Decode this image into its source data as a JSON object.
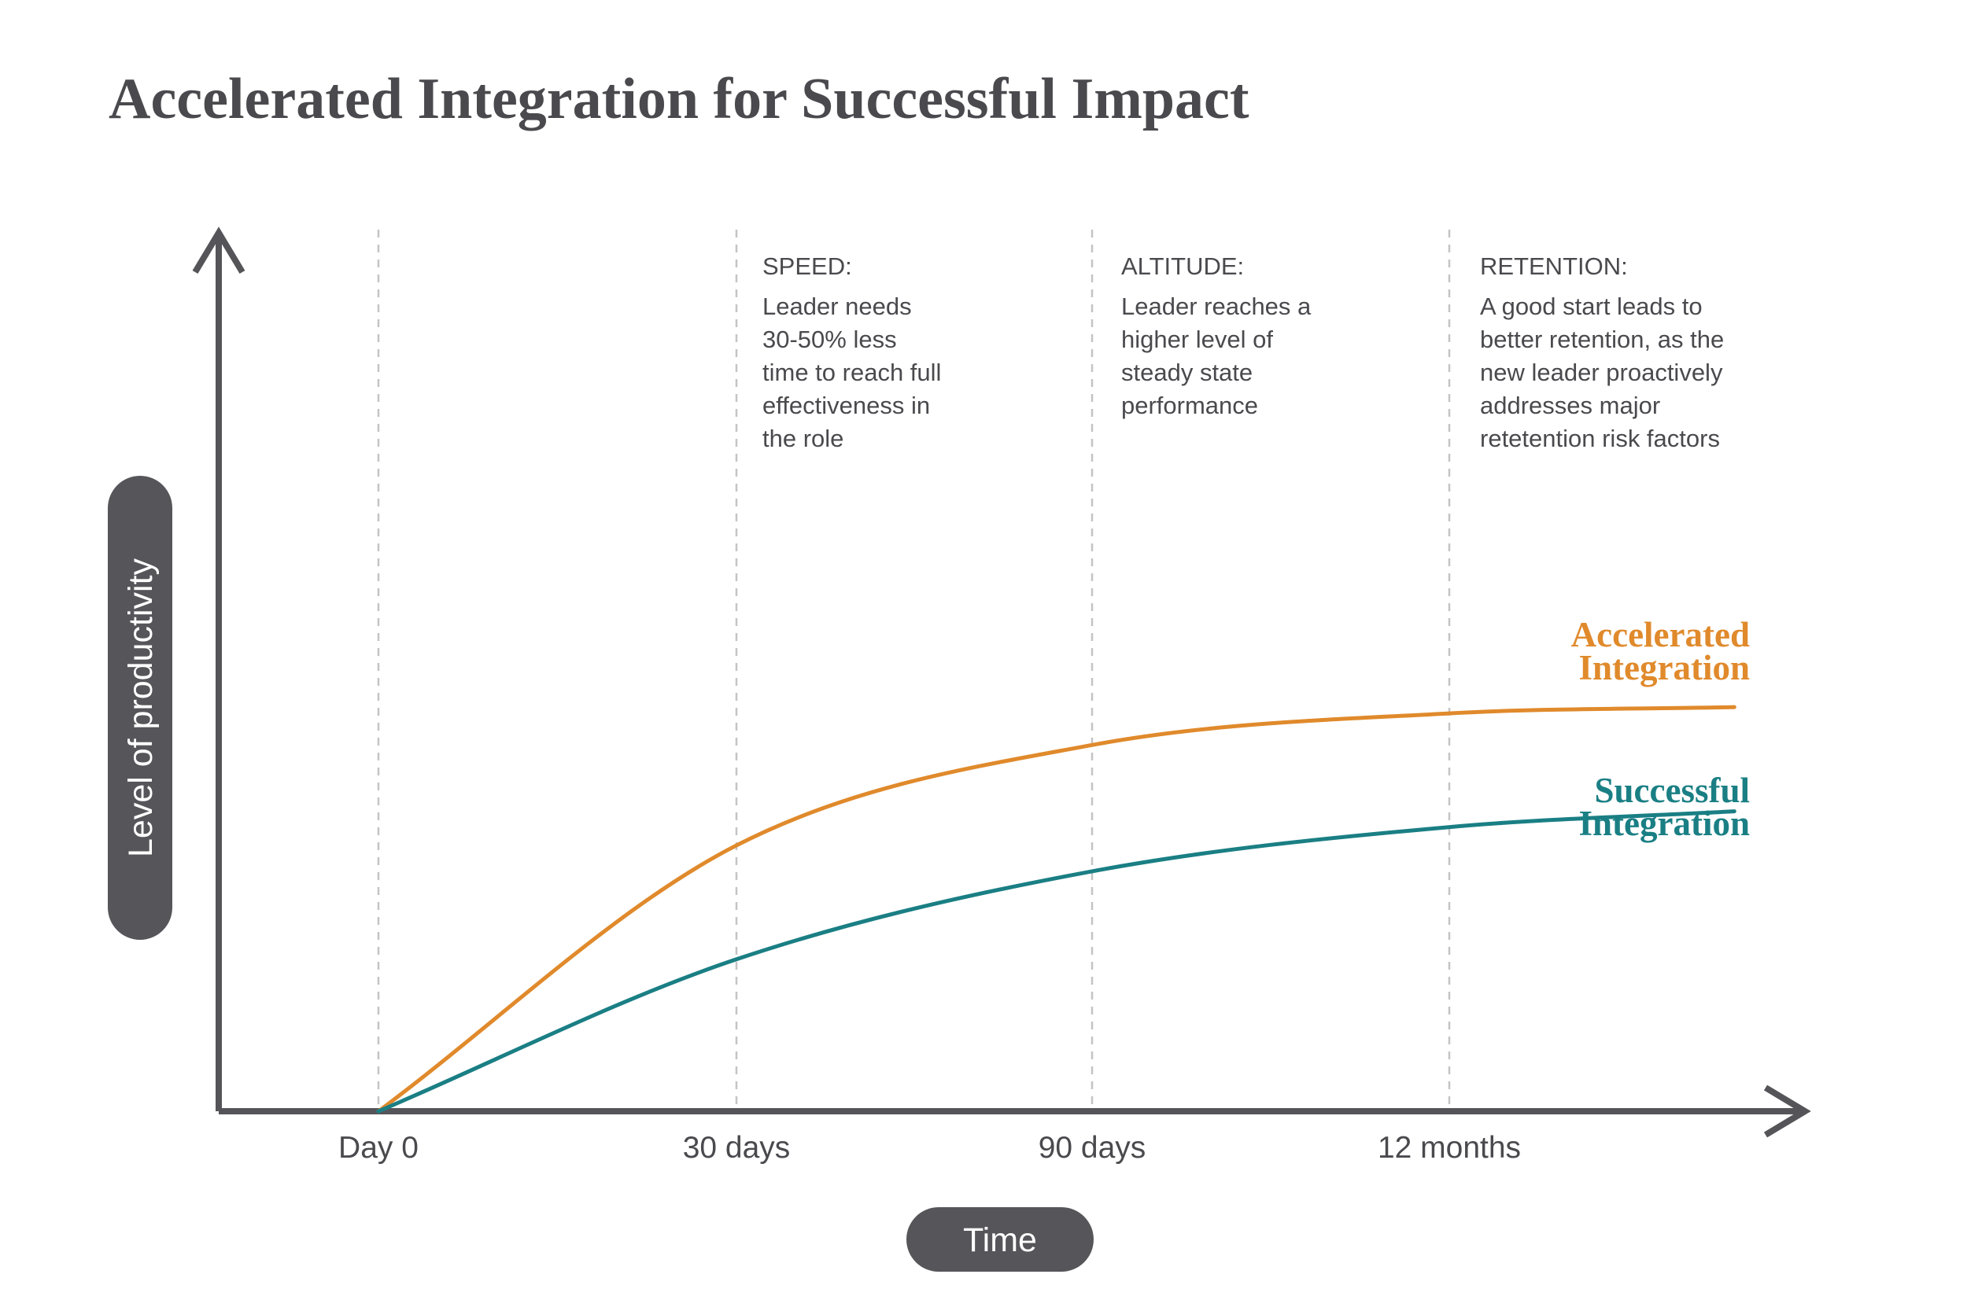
{
  "chart_data": {
    "type": "line",
    "title": "Accelerated Integration for Successful Impact",
    "xlabel": "Time",
    "ylabel": "Level of productivity",
    "x_ticks": [
      "Day 0",
      "30 days",
      "90 days",
      "12 months"
    ],
    "grid": "vertical dashed lines at each milestone",
    "annotations": [
      {
        "at": "30 days",
        "heading": "SPEED:",
        "lines": [
          "Leader needs",
          "30-50% less",
          "time to reach full",
          "effectiveness in",
          "the role"
        ]
      },
      {
        "at": "90 days",
        "heading": "ALTITUDE:",
        "lines": [
          "Leader reaches a",
          "higher level of",
          "steady state",
          "performance"
        ]
      },
      {
        "at": "12 months",
        "heading": "RETENTION:",
        "lines": [
          "A good start leads to",
          "better retention, as the",
          "new leader proactively",
          "addresses major",
          "retetention risk factors"
        ]
      }
    ],
    "ylim": [
      0,
      100
    ],
    "series": [
      {
        "name": "Accelerated Integration",
        "label_lines": [
          "Accelerated",
          "Integration"
        ],
        "color": "#e08a2c",
        "points": [
          [
            0,
            0
          ],
          [
            0.5,
            42
          ],
          [
            1,
            58
          ],
          [
            1.5,
            63
          ],
          [
            1.9,
            64
          ]
        ]
      },
      {
        "name": "Successful Integration",
        "label_lines": [
          "Successful",
          "Integration"
        ],
        "color": "#1a7f84",
        "points": [
          [
            0,
            0
          ],
          [
            0.5,
            24
          ],
          [
            1,
            38
          ],
          [
            1.5,
            45
          ],
          [
            1.9,
            47.5
          ]
        ]
      }
    ]
  },
  "colors": {
    "axis": "#555559",
    "grid": "#c4c4c4",
    "pill": "#55555a",
    "text": "#4a4a4e"
  }
}
